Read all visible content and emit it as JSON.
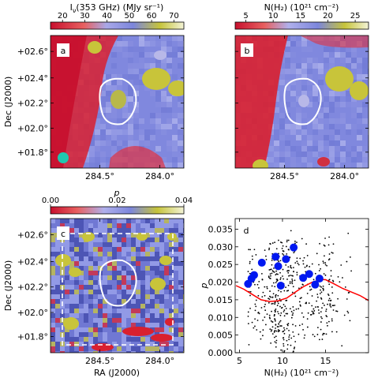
{
  "figure": {
    "panel_a": {
      "letter": "a",
      "colorbar_title": "I_ν(353 GHz) (MJy sr⁻¹)",
      "colorbar_title_main": "I",
      "colorbar_title_sub": "ν",
      "colorbar_title_rest": "(353 GHz) (MJy sr⁻¹)",
      "colorbar_ticks": [
        "20",
        "30",
        "40",
        "50",
        "60",
        "70"
      ],
      "yticks": [
        "+02.6°",
        "+02.4°",
        "+02.2°",
        "+02.0°",
        "+01.8°"
      ],
      "xticks": [
        "284.5°",
        "284.0°"
      ],
      "ylabel": "Dec (J2000)"
    },
    "panel_b": {
      "letter": "b",
      "colorbar_title": "N(H₂) (10²¹ cm⁻²)",
      "colorbar_ticks": [
        "5",
        "10",
        "15",
        "20",
        "25"
      ],
      "xticks": [
        "284.5°",
        "284.0°"
      ]
    },
    "panel_c": {
      "letter": "c",
      "colorbar_title": "p",
      "colorbar_ticks": [
        "0.00",
        "0.02",
        "0.04"
      ],
      "yticks": [
        "+02.6°",
        "+02.4°",
        "+02.2°",
        "+02.0°",
        "+01.8°"
      ],
      "xticks": [
        "284.5°",
        "284.0°"
      ],
      "ylabel": "Dec (J2000)",
      "xlabel": "RA (J2000)"
    },
    "colors": {
      "map_red": "#d7172f",
      "map_blue": "#7f86de",
      "map_yellow": "#c7c43a",
      "contour": "#ffffff",
      "beam": "#1fc8b0",
      "scatter_dot": "#000000",
      "scatter_big": "#0018f0",
      "trend_line": "#ff0000"
    }
  },
  "chart_data": {
    "type": "scatter",
    "panel_letter": "d",
    "xlabel": "N(H₂) (10²¹ cm⁻²)",
    "ylabel": "p",
    "xlim": [
      4.5,
      20
    ],
    "ylim": [
      0,
      0.038
    ],
    "xticks": [
      5,
      10,
      15
    ],
    "yticks": [
      0.0,
      0.005,
      0.01,
      0.015,
      0.02,
      0.025,
      0.03,
      0.035
    ],
    "ytick_labels": [
      "0.000",
      "0.005",
      "0.010",
      "0.015",
      "0.020",
      "0.025",
      "0.030",
      "0.035"
    ],
    "xtick_labels": [
      "5",
      "10",
      "15"
    ],
    "series": [
      {
        "role": "highlighted points",
        "points": [
          [
            6.0,
            0.0195
          ],
          [
            6.4,
            0.021
          ],
          [
            6.7,
            0.022
          ],
          [
            7.6,
            0.0255
          ],
          [
            9.2,
            0.0272
          ],
          [
            9.5,
            0.0245
          ],
          [
            9.8,
            0.019
          ],
          [
            10.4,
            0.0265
          ],
          [
            11.3,
            0.0298
          ],
          [
            12.4,
            0.0212
          ],
          [
            13.1,
            0.0223
          ],
          [
            13.8,
            0.0193
          ],
          [
            14.3,
            0.021
          ]
        ]
      },
      {
        "role": "running mean",
        "points": [
          [
            4.6,
            0.019
          ],
          [
            5.5,
            0.018
          ],
          [
            6.5,
            0.0165
          ],
          [
            7.5,
            0.015
          ],
          [
            8.5,
            0.0145
          ],
          [
            9.5,
            0.0147
          ],
          [
            10.5,
            0.0155
          ],
          [
            11.5,
            0.0172
          ],
          [
            12.5,
            0.0188
          ],
          [
            13.5,
            0.02
          ],
          [
            14.5,
            0.0207
          ],
          [
            15.0,
            0.0207
          ],
          [
            16.0,
            0.0195
          ],
          [
            17.0,
            0.0182
          ],
          [
            18.0,
            0.0172
          ],
          [
            19.0,
            0.0162
          ],
          [
            20.0,
            0.0148
          ]
        ]
      },
      {
        "role": "pixel samples",
        "count": 520,
        "x_range": [
          5.0,
          18.0
        ],
        "y_range": [
          0.0,
          0.037
        ]
      }
    ]
  }
}
